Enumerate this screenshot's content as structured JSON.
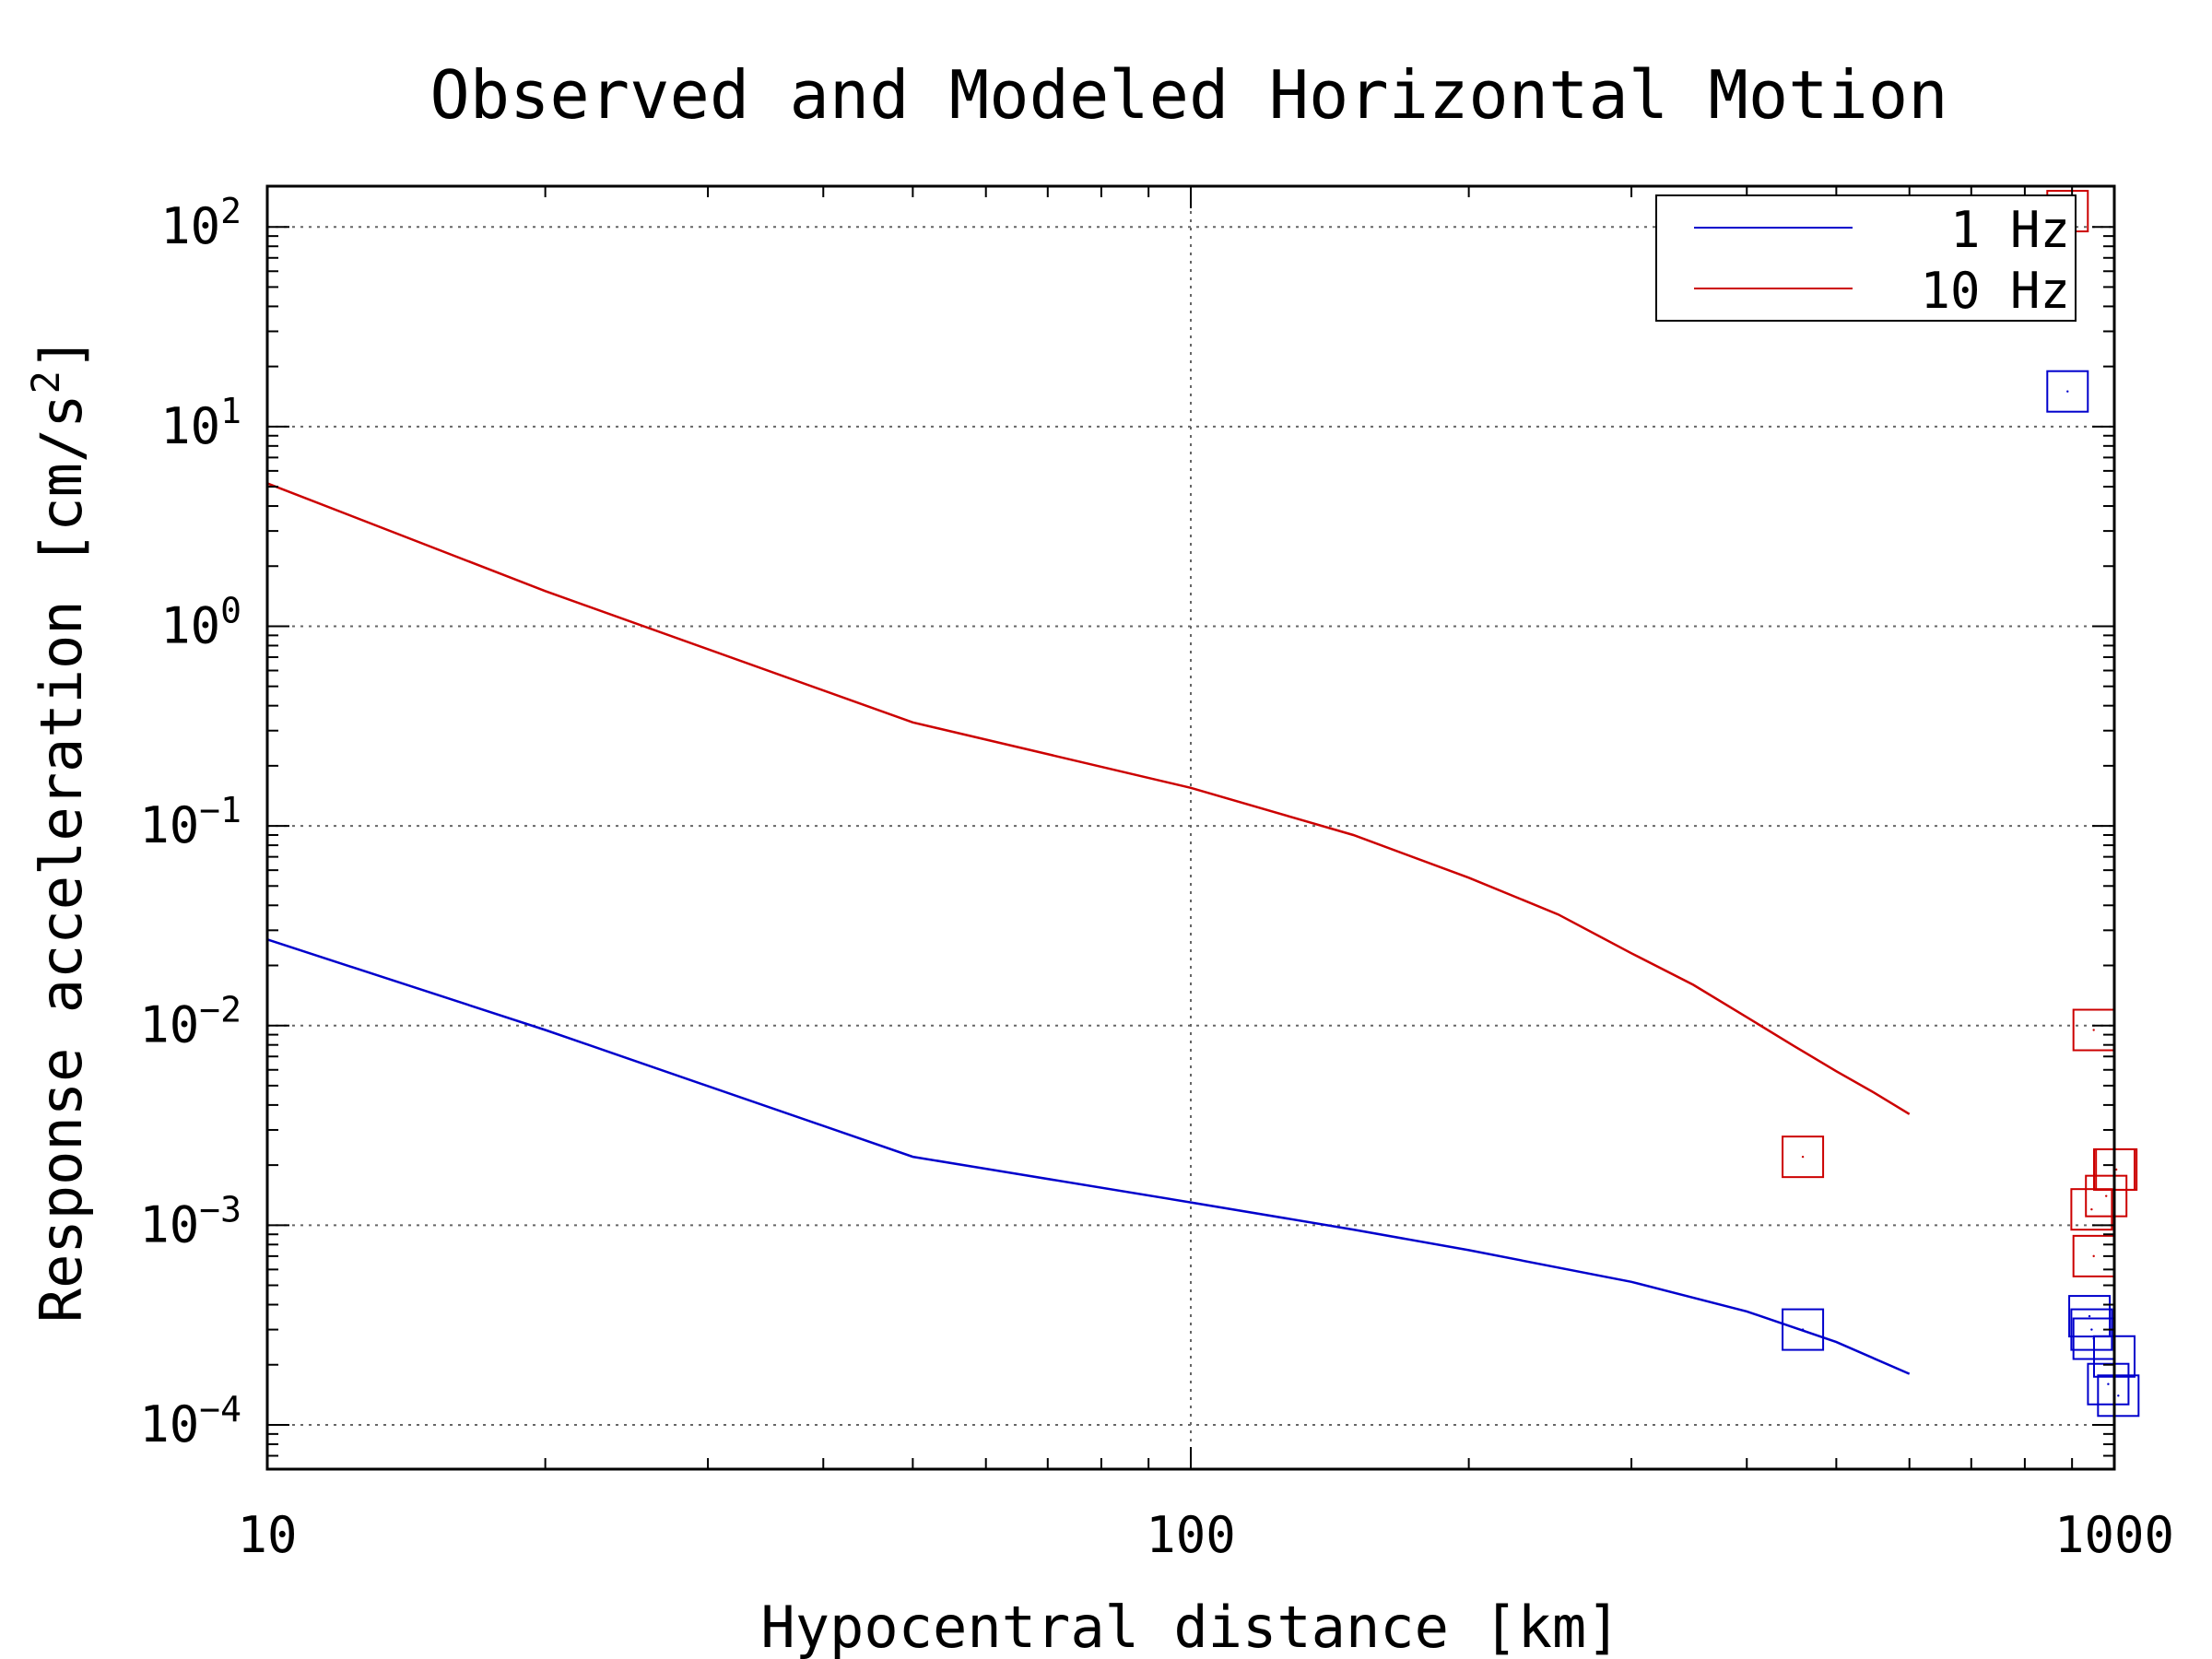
{
  "chart_data": {
    "type": "line",
    "title": "Observed and Modeled Horizontal Motion",
    "xlabel": "Hypocentral distance [km]",
    "ylabel_main": "Response acceleration [cm/s",
    "ylabel_sup": "2",
    "ylabel_close": "]",
    "x_scale": "log",
    "y_scale": "log",
    "xlim": [
      10,
      1000
    ],
    "ylim": [
      6e-05,
      160
    ],
    "grid": true,
    "legend_position": "top-right",
    "x_ticks": [
      {
        "value": 10,
        "label": "10"
      },
      {
        "value": 100,
        "label": "100"
      },
      {
        "value": 1000,
        "label": "1000"
      }
    ],
    "y_ticks": [
      {
        "value": 0.0001,
        "base": "10",
        "exp": "−4"
      },
      {
        "value": 0.001,
        "base": "10",
        "exp": "−3"
      },
      {
        "value": 0.01,
        "base": "10",
        "exp": "−2"
      },
      {
        "value": 0.1,
        "base": "10",
        "exp": "−1"
      },
      {
        "value": 1,
        "base": "10",
        "exp": "0"
      },
      {
        "value": 10,
        "base": "10",
        "exp": "1"
      },
      {
        "value": 100,
        "base": "10",
        "exp": "2"
      }
    ],
    "series": [
      {
        "name": "1 Hz",
        "color": "#0000cc",
        "x": [
          10,
          20,
          50,
          100,
          150,
          200,
          300,
          400,
          500,
          600
        ],
        "y": [
          0.027,
          0.0095,
          0.0022,
          0.0013,
          0.00095,
          0.00075,
          0.00052,
          0.00037,
          0.00026,
          0.00018
        ]
      },
      {
        "name": "10 Hz",
        "color": "#cc0000",
        "x": [
          10,
          20,
          50,
          100,
          150,
          200,
          250,
          300,
          350,
          400,
          450,
          500,
          550,
          600
        ],
        "y": [
          5.2,
          1.5,
          0.33,
          0.155,
          0.09,
          0.055,
          0.036,
          0.023,
          0.016,
          0.011,
          0.0079,
          0.0059,
          0.0046,
          0.0036
        ]
      }
    ],
    "observations": [
      {
        "series": "1 Hz",
        "color": "#0000cc",
        "points": [
          {
            "x": 460,
            "y": 0.0003
          },
          {
            "x": 890,
            "y": 15
          },
          {
            "x": 940,
            "y": 0.00035
          },
          {
            "x": 945,
            "y": 0.0003
          },
          {
            "x": 950,
            "y": 0.00027
          },
          {
            "x": 985,
            "y": 0.00016
          },
          {
            "x": 1000,
            "y": 0.00022
          },
          {
            "x": 1010,
            "y": 0.00014
          }
        ]
      },
      {
        "series": "10 Hz",
        "color": "#cc0000",
        "points": [
          {
            "x": 460,
            "y": 0.0022
          },
          {
            "x": 890,
            "y": 120
          },
          {
            "x": 950,
            "y": 0.0095
          },
          {
            "x": 945,
            "y": 0.0012
          },
          {
            "x": 950,
            "y": 0.0007
          },
          {
            "x": 980,
            "y": 0.0014
          },
          {
            "x": 1000,
            "y": 0.0019
          },
          {
            "x": 1005,
            "y": 0.0019
          }
        ]
      }
    ]
  }
}
